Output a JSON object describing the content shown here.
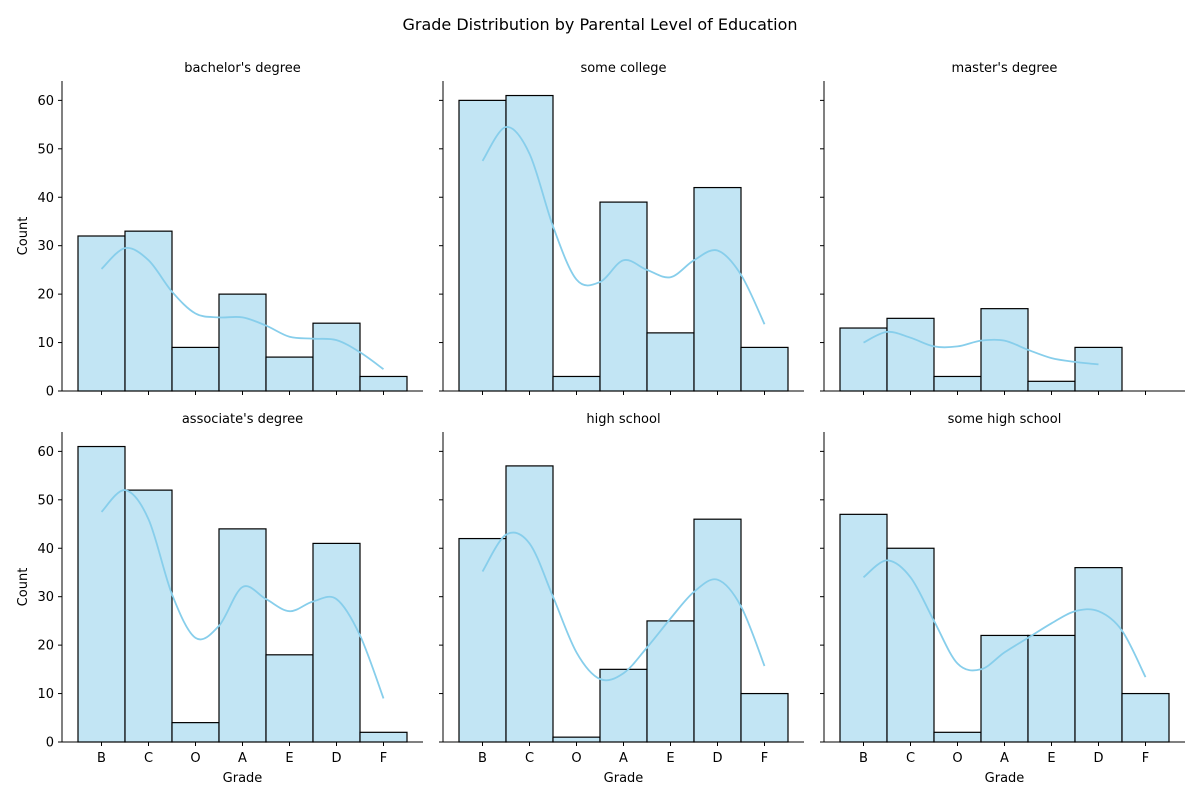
{
  "chart_data": {
    "type": "bar",
    "title": "Grade Distribution by Parental Level of Education",
    "xlabel": "Grade",
    "ylabel": "Count",
    "categories": [
      "B",
      "C",
      "O",
      "A",
      "E",
      "D",
      "F"
    ],
    "ylim": [
      0,
      64
    ],
    "yticks": [
      0,
      10,
      20,
      30,
      40,
      50,
      60
    ],
    "grid": false,
    "colors": {
      "bar_fill": "#c2e5f4",
      "bar_edge": "#000000",
      "kde": "#87ceeb"
    },
    "panels": [
      {
        "name": "bachelor's degree",
        "values": [
          32,
          33,
          9,
          20,
          7,
          14,
          3
        ],
        "kde": [
          25.2,
          29.5,
          27,
          20.5,
          16,
          15.2,
          15.2,
          13.5,
          11.2,
          10.8,
          10.5,
          8,
          4.5
        ]
      },
      {
        "name": "some college",
        "values": [
          60,
          61,
          3,
          39,
          12,
          42,
          9
        ],
        "kde": [
          47.5,
          54.5,
          49,
          34,
          23,
          22.5,
          27,
          25,
          23.5,
          27,
          29,
          24,
          13.8
        ]
      },
      {
        "name": "master's degree",
        "values": [
          13,
          15,
          3,
          17,
          2,
          9,
          null
        ],
        "kde": [
          10,
          12.2,
          11,
          9.2,
          9.2,
          10.4,
          10.4,
          8.5,
          6.8,
          6,
          5.5
        ]
      },
      {
        "name": "associate's degree",
        "values": [
          61,
          52,
          4,
          44,
          18,
          41,
          2
        ],
        "kde": [
          47.5,
          52,
          46,
          30.5,
          21.5,
          24,
          32,
          29.5,
          27,
          29,
          29.5,
          22,
          9
        ]
      },
      {
        "name": "high school",
        "values": [
          42,
          57,
          1,
          15,
          25,
          46,
          10
        ],
        "kde": [
          35.2,
          42.8,
          41,
          30,
          18.5,
          13,
          14.2,
          19.5,
          25.5,
          31,
          33.5,
          28,
          15.7
        ]
      },
      {
        "name": "some high school",
        "values": [
          47,
          40,
          2,
          22,
          22,
          36,
          10
        ],
        "kde": [
          34,
          37.5,
          34,
          25,
          16.2,
          15,
          18.5,
          21.5,
          24.5,
          27,
          27,
          23,
          13.4
        ]
      }
    ]
  }
}
